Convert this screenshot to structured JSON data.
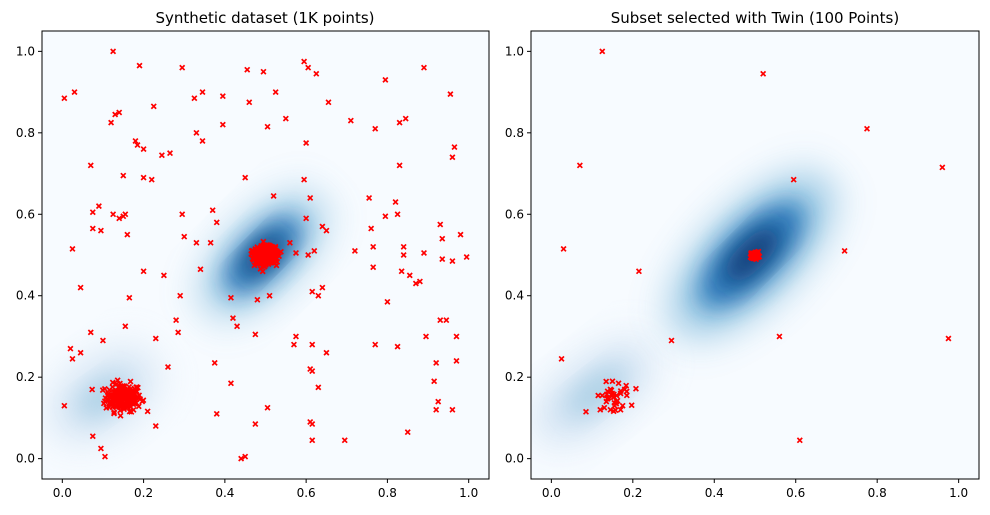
{
  "colors": {
    "marker": "#ff0000",
    "density_dark": "#08306b",
    "density_mid": "#2171b5",
    "density_light": "#c6dbef",
    "background": "#f7fbff"
  },
  "chart_data": [
    {
      "type": "scatter",
      "title": "Synthetic dataset (1K points)",
      "xlabel": "",
      "ylabel": "",
      "xlim": [
        -0.05,
        1.05
      ],
      "ylim": [
        -0.05,
        1.05
      ],
      "x_ticks": [
        "0.0",
        "0.2",
        "0.4",
        "0.6",
        "0.8",
        "1.0"
      ],
      "y_ticks": [
        "0.0",
        "0.2",
        "0.4",
        "0.6",
        "0.8",
        "1.0"
      ],
      "grid": false,
      "background": "kernel density estimate (Blues colormap)",
      "marker": "x",
      "clusters": [
        {
          "center": [
            0.15,
            0.15
          ],
          "approx_count": 200
        },
        {
          "center": [
            0.5,
            0.5
          ],
          "approx_count": 700
        }
      ],
      "points": [
        [
          0.005,
          0.885
        ],
        [
          0.03,
          0.9
        ],
        [
          0.125,
          1.0
        ],
        [
          0.19,
          0.965
        ],
        [
          0.295,
          0.96
        ],
        [
          0.455,
          0.955
        ],
        [
          0.495,
          0.95
        ],
        [
          0.595,
          0.975
        ],
        [
          0.605,
          0.96
        ],
        [
          0.625,
          0.945
        ],
        [
          0.795,
          0.93
        ],
        [
          0.89,
          0.96
        ],
        [
          0.955,
          0.895
        ],
        [
          0.12,
          0.825
        ],
        [
          0.13,
          0.845
        ],
        [
          0.14,
          0.85
        ],
        [
          0.225,
          0.865
        ],
        [
          0.325,
          0.885
        ],
        [
          0.345,
          0.9
        ],
        [
          0.395,
          0.89
        ],
        [
          0.46,
          0.875
        ],
        [
          0.525,
          0.9
        ],
        [
          0.655,
          0.875
        ],
        [
          0.55,
          0.835
        ],
        [
          0.505,
          0.815
        ],
        [
          0.395,
          0.82
        ],
        [
          0.33,
          0.8
        ],
        [
          0.345,
          0.78
        ],
        [
          0.18,
          0.78
        ],
        [
          0.185,
          0.77
        ],
        [
          0.2,
          0.76
        ],
        [
          0.71,
          0.83
        ],
        [
          0.77,
          0.81
        ],
        [
          0.83,
          0.825
        ],
        [
          0.845,
          0.835
        ],
        [
          0.6,
          0.775
        ],
        [
          0.965,
          0.765
        ],
        [
          0.96,
          0.74
        ],
        [
          0.83,
          0.72
        ],
        [
          0.07,
          0.72
        ],
        [
          0.15,
          0.695
        ],
        [
          0.2,
          0.69
        ],
        [
          0.22,
          0.685
        ],
        [
          0.45,
          0.69
        ],
        [
          0.595,
          0.685
        ],
        [
          0.245,
          0.745
        ],
        [
          0.265,
          0.75
        ],
        [
          0.52,
          0.645
        ],
        [
          0.61,
          0.64
        ],
        [
          0.755,
          0.64
        ],
        [
          0.82,
          0.63
        ],
        [
          0.825,
          0.6
        ],
        [
          0.075,
          0.605
        ],
        [
          0.09,
          0.62
        ],
        [
          0.125,
          0.6
        ],
        [
          0.15,
          0.595
        ],
        [
          0.155,
          0.6
        ],
        [
          0.14,
          0.59
        ],
        [
          0.295,
          0.6
        ],
        [
          0.37,
          0.61
        ],
        [
          0.38,
          0.58
        ],
        [
          0.6,
          0.59
        ],
        [
          0.76,
          0.565
        ],
        [
          0.795,
          0.595
        ],
        [
          0.075,
          0.565
        ],
        [
          0.095,
          0.56
        ],
        [
          0.16,
          0.55
        ],
        [
          0.3,
          0.545
        ],
        [
          0.365,
          0.53
        ],
        [
          0.64,
          0.57
        ],
        [
          0.65,
          0.56
        ],
        [
          0.93,
          0.575
        ],
        [
          0.935,
          0.54
        ],
        [
          0.98,
          0.55
        ],
        [
          0.025,
          0.515
        ],
        [
          0.2,
          0.46
        ],
        [
          0.25,
          0.45
        ],
        [
          0.34,
          0.465
        ],
        [
          0.33,
          0.53
        ],
        [
          0.56,
          0.53
        ],
        [
          0.575,
          0.505
        ],
        [
          0.605,
          0.5
        ],
        [
          0.62,
          0.51
        ],
        [
          0.72,
          0.51
        ],
        [
          0.765,
          0.52
        ],
        [
          0.765,
          0.47
        ],
        [
          0.84,
          0.52
        ],
        [
          0.835,
          0.46
        ],
        [
          0.855,
          0.45
        ],
        [
          0.84,
          0.5
        ],
        [
          0.89,
          0.505
        ],
        [
          0.935,
          0.49
        ],
        [
          0.96,
          0.485
        ],
        [
          0.995,
          0.495
        ],
        [
          0.045,
          0.42
        ],
        [
          0.165,
          0.395
        ],
        [
          0.29,
          0.4
        ],
        [
          0.415,
          0.395
        ],
        [
          0.48,
          0.39
        ],
        [
          0.51,
          0.4
        ],
        [
          0.615,
          0.41
        ],
        [
          0.63,
          0.4
        ],
        [
          0.64,
          0.42
        ],
        [
          0.8,
          0.385
        ],
        [
          0.87,
          0.43
        ],
        [
          0.88,
          0.435
        ],
        [
          0.42,
          0.345
        ],
        [
          0.28,
          0.34
        ],
        [
          0.285,
          0.31
        ],
        [
          0.43,
          0.325
        ],
        [
          0.475,
          0.305
        ],
        [
          0.575,
          0.3
        ],
        [
          0.57,
          0.28
        ],
        [
          0.615,
          0.28
        ],
        [
          0.61,
          0.22
        ],
        [
          0.07,
          0.31
        ],
        [
          0.1,
          0.29
        ],
        [
          0.155,
          0.325
        ],
        [
          0.23,
          0.295
        ],
        [
          0.77,
          0.28
        ],
        [
          0.825,
          0.275
        ],
        [
          0.895,
          0.3
        ],
        [
          0.93,
          0.34
        ],
        [
          0.945,
          0.34
        ],
        [
          0.97,
          0.3
        ],
        [
          0.97,
          0.24
        ],
        [
          0.92,
          0.235
        ],
        [
          0.615,
          0.215
        ],
        [
          0.65,
          0.26
        ],
        [
          0.02,
          0.27
        ],
        [
          0.025,
          0.245
        ],
        [
          0.045,
          0.26
        ],
        [
          0.375,
          0.235
        ],
        [
          0.26,
          0.225
        ],
        [
          0.915,
          0.19
        ],
        [
          0.925,
          0.14
        ],
        [
          0.92,
          0.12
        ],
        [
          0.96,
          0.12
        ],
        [
          0.415,
          0.185
        ],
        [
          0.63,
          0.175
        ],
        [
          0.005,
          0.13
        ],
        [
          0.38,
          0.11
        ],
        [
          0.505,
          0.125
        ],
        [
          0.61,
          0.09
        ],
        [
          0.615,
          0.085
        ],
        [
          0.475,
          0.085
        ],
        [
          0.23,
          0.08
        ],
        [
          0.075,
          0.055
        ],
        [
          0.095,
          0.025
        ],
        [
          0.105,
          0.005
        ],
        [
          0.45,
          0.005
        ],
        [
          0.44,
          0.0
        ],
        [
          0.615,
          0.045
        ],
        [
          0.695,
          0.045
        ],
        [
          0.85,
          0.065
        ]
      ]
    },
    {
      "type": "scatter",
      "title": "Subset selected with Twin (100 Points)",
      "xlabel": "",
      "ylabel": "",
      "xlim": [
        -0.05,
        1.05
      ],
      "ylim": [
        -0.05,
        1.05
      ],
      "x_ticks": [
        "0.0",
        "0.2",
        "0.4",
        "0.6",
        "0.8",
        "1.0"
      ],
      "y_ticks": [
        "0.0",
        "0.2",
        "0.4",
        "0.6",
        "0.8",
        "1.0"
      ],
      "grid": false,
      "background": "kernel density estimate (Blues colormap)",
      "marker": "x",
      "clusters": [
        {
          "center": [
            0.5,
            0.5
          ],
          "approx_count": 60
        },
        {
          "center": [
            0.15,
            0.15
          ],
          "approx_count": 20
        }
      ],
      "points": [
        [
          0.125,
          1.0
        ],
        [
          0.52,
          0.945
        ],
        [
          0.07,
          0.72
        ],
        [
          0.775,
          0.81
        ],
        [
          0.595,
          0.685
        ],
        [
          0.96,
          0.715
        ],
        [
          0.03,
          0.515
        ],
        [
          0.72,
          0.51
        ],
        [
          0.215,
          0.46
        ],
        [
          0.295,
          0.29
        ],
        [
          0.56,
          0.3
        ],
        [
          0.975,
          0.295
        ],
        [
          0.025,
          0.245
        ],
        [
          0.61,
          0.045
        ],
        [
          0.12,
          0.12
        ],
        [
          0.13,
          0.125
        ],
        [
          0.14,
          0.15
        ],
        [
          0.15,
          0.19
        ],
        [
          0.165,
          0.185
        ],
        [
          0.17,
          0.16
        ],
        [
          0.18,
          0.17
        ],
        [
          0.185,
          0.165
        ],
        [
          0.145,
          0.17
        ],
        [
          0.125,
          0.155
        ],
        [
          0.155,
          0.13
        ],
        [
          0.16,
          0.14
        ],
        [
          0.17,
          0.12
        ],
        [
          0.175,
          0.13
        ],
        [
          0.085,
          0.115
        ],
        [
          0.135,
          0.14
        ],
        [
          0.145,
          0.12
        ],
        [
          0.115,
          0.155
        ],
        [
          0.16,
          0.155
        ],
        [
          0.15,
          0.155
        ]
      ]
    }
  ]
}
